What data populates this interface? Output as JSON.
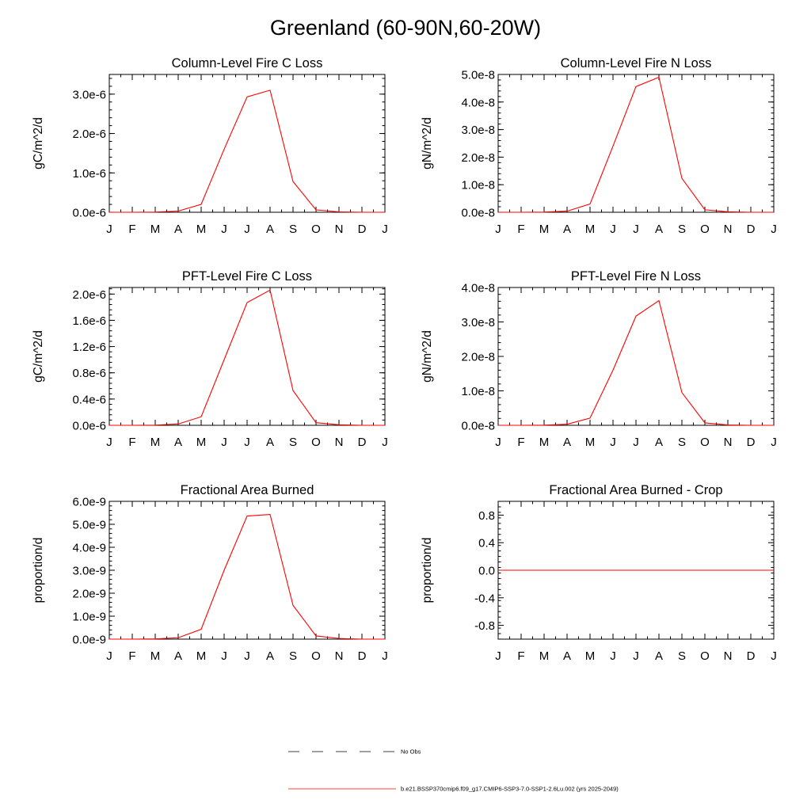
{
  "title": "Greenland (60-90N,60-20W)",
  "line_color": "#ff0000",
  "chart_data": [
    {
      "type": "line",
      "title": "Column-Level Fire C Loss",
      "ylabel": "gC/m^2/d",
      "categories": [
        "J",
        "F",
        "M",
        "A",
        "M",
        "J",
        "J",
        "A",
        "S",
        "O",
        "N",
        "D",
        "J"
      ],
      "ylim": [
        0,
        3.5e-06
      ],
      "yticks": [
        0,
        1e-06,
        2e-06,
        3e-06
      ],
      "ytick_labels": [
        "0.0e-6",
        "1.0e-6",
        "2.0e-6",
        "3.0e-6"
      ],
      "series": [
        {
          "name": "b.e21.BSSP370cmip6.f09_g17.CMIP6-SSP3-7.0-SSP1-2.6Lu.002 (yrs 2025-2049)",
          "values": [
            0,
            0,
            5e-09,
            3e-08,
            2e-07,
            1.6e-06,
            2.93e-06,
            3.1e-06,
            7.8e-07,
            6e-08,
            1e-08,
            0,
            0
          ]
        }
      ]
    },
    {
      "type": "line",
      "title": "Column-Level Fire N Loss",
      "ylabel": "gN/m^2/d",
      "categories": [
        "J",
        "F",
        "M",
        "A",
        "M",
        "J",
        "J",
        "A",
        "S",
        "O",
        "N",
        "D",
        "J"
      ],
      "ylim": [
        0,
        5e-08
      ],
      "yticks": [
        0,
        1e-08,
        2e-08,
        3e-08,
        4e-08,
        5e-08
      ],
      "ytick_labels": [
        "0.0e-8",
        "1.0e-8",
        "2.0e-8",
        "3.0e-8",
        "4.0e-8",
        "5.0e-8"
      ],
      "series": [
        {
          "name": "b.e21.BSSP370cmip6.f09_g17.CMIP6-SSP3-7.0-SSP1-2.6Lu.002 (yrs 2025-2049)",
          "values": [
            0,
            0,
            5e-11,
            4e-10,
            3e-09,
            2.4e-08,
            4.56e-08,
            4.9e-08,
            1.23e-08,
            9e-10,
            1.5e-10,
            0,
            0
          ]
        }
      ]
    },
    {
      "type": "line",
      "title": "PFT-Level Fire C Loss",
      "ylabel": "gC/m^2/d",
      "categories": [
        "J",
        "F",
        "M",
        "A",
        "M",
        "J",
        "J",
        "A",
        "S",
        "O",
        "N",
        "D",
        "J"
      ],
      "ylim": [
        0,
        2.1e-06
      ],
      "yticks": [
        0,
        4e-07,
        8e-07,
        1.2e-06,
        1.6e-06,
        2e-06
      ],
      "ytick_labels": [
        "0.0e-6",
        "0.4e-6",
        "0.8e-6",
        "1.2e-6",
        "1.6e-6",
        "2.0e-6"
      ],
      "series": [
        {
          "name": "b.e21.BSSP370cmip6.f09_g17.CMIP6-SSP3-7.0-SSP1-2.6Lu.002 (yrs 2025-2049)",
          "values": [
            0,
            0,
            3e-09,
            2e-08,
            1.3e-07,
            1e-06,
            1.87e-06,
            2.06e-06,
            5.3e-07,
            4e-08,
            8e-09,
            0,
            0
          ]
        }
      ]
    },
    {
      "type": "line",
      "title": "PFT-Level Fire N Loss",
      "ylabel": "gN/m^2/d",
      "categories": [
        "J",
        "F",
        "M",
        "A",
        "M",
        "J",
        "J",
        "A",
        "S",
        "O",
        "N",
        "D",
        "J"
      ],
      "ylim": [
        0,
        4e-08
      ],
      "yticks": [
        0,
        1e-08,
        2e-08,
        3e-08,
        4e-08
      ],
      "ytick_labels": [
        "0.0e-8",
        "1.0e-8",
        "2.0e-8",
        "3.0e-8",
        "4.0e-8"
      ],
      "series": [
        {
          "name": "b.e21.BSSP370cmip6.f09_g17.CMIP6-SSP3-7.0-SSP1-2.6Lu.002 (yrs 2025-2049)",
          "values": [
            0,
            0,
            5e-11,
            3e-10,
            2.1e-09,
            1.6e-08,
            3.17e-08,
            3.62e-08,
            9.5e-09,
            7e-10,
            1e-10,
            0,
            0
          ]
        }
      ]
    },
    {
      "type": "line",
      "title": "Fractional Area Burned",
      "ylabel": "proportion/d",
      "categories": [
        "J",
        "F",
        "M",
        "A",
        "M",
        "J",
        "J",
        "A",
        "S",
        "O",
        "N",
        "D",
        "J"
      ],
      "ylim": [
        0,
        6e-09
      ],
      "yticks": [
        0,
        1e-09,
        2e-09,
        3e-09,
        4e-09,
        5e-09,
        6e-09
      ],
      "ytick_labels": [
        "0.0e-9",
        "1.0e-9",
        "2.0e-9",
        "3.0e-9",
        "4.0e-9",
        "5.0e-9",
        "6.0e-9"
      ],
      "series": [
        {
          "name": "b.e21.BSSP370cmip6.f09_g17.CMIP6-SSP3-7.0-SSP1-2.6Lu.002 (yrs 2025-2049)",
          "values": [
            0,
            0,
            1e-11,
            6e-11,
            4.3e-10,
            3e-09,
            5.36e-09,
            5.43e-09,
            1.47e-09,
            1.4e-10,
            3e-11,
            0,
            0
          ]
        }
      ]
    },
    {
      "type": "line",
      "title": "Fractional Area Burned - Crop",
      "ylabel": "proportion/d",
      "categories": [
        "J",
        "F",
        "M",
        "A",
        "M",
        "J",
        "J",
        "A",
        "S",
        "O",
        "N",
        "D",
        "J"
      ],
      "ylim": [
        -1.0,
        1.0
      ],
      "yticks": [
        -0.8,
        -0.4,
        0.0,
        0.4,
        0.8
      ],
      "ytick_labels": [
        "-0.8",
        "-0.4",
        "0.0",
        "0.4",
        "0.8"
      ],
      "series": [
        {
          "name": "b.e21.BSSP370cmip6.f09_g17.CMIP6-SSP3-7.0-SSP1-2.6Lu.002 (yrs 2025-2049)",
          "values": [
            0,
            0,
            0,
            0,
            0,
            0,
            0,
            0,
            0,
            0,
            0,
            0,
            0
          ]
        }
      ]
    }
  ],
  "legend": [
    {
      "label": "No Obs",
      "style": "dashed",
      "color": "#000000"
    },
    {
      "label": "b.e21.BSSP370cmip6.f09_g17.CMIP6-SSP3-7.0-SSP1-2.6Lu.002 (yrs 2025-2049)",
      "style": "solid",
      "color": "#ff0000"
    }
  ]
}
